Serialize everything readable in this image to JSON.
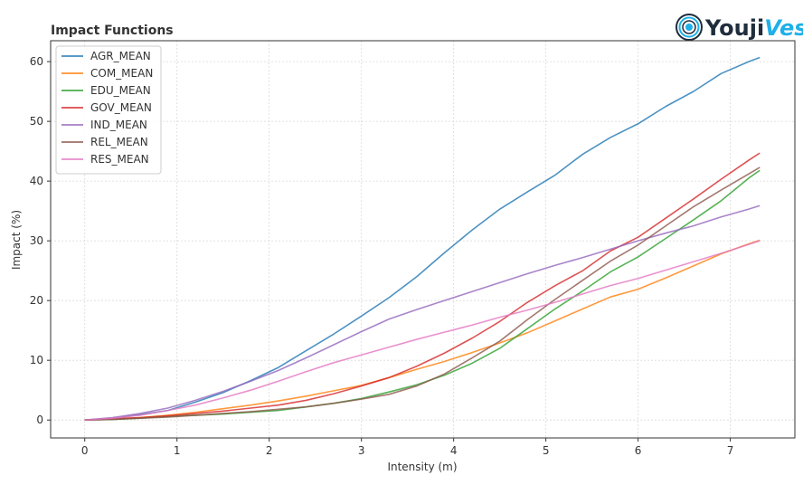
{
  "logo": {
    "part1": "Youji",
    "part2": "Vest"
  },
  "chart_data": {
    "type": "line",
    "title": "Impact Functions",
    "xlabel": "Intensity (m)",
    "ylabel": "Impact (%)",
    "xlim": [
      -0.37,
      7.7
    ],
    "ylim": [
      -3,
      63.5
    ],
    "xticks": [
      0,
      1,
      2,
      3,
      4,
      5,
      6,
      7
    ],
    "yticks": [
      0,
      10,
      20,
      30,
      40,
      50,
      60
    ],
    "grid": true,
    "legend_position": "top-left",
    "x": [
      0,
      0.3,
      0.6,
      0.9,
      1.2,
      1.5,
      1.8,
      2.1,
      2.4,
      2.7,
      3.0,
      3.3,
      3.6,
      3.9,
      4.2,
      4.5,
      4.8,
      5.1,
      5.4,
      5.7,
      6.0,
      6.3,
      6.6,
      6.9,
      7.2,
      7.32
    ],
    "series": [
      {
        "name": "AGR_MEAN",
        "color": "#1f77b4",
        "values": [
          0,
          0.3,
          0.9,
          1.6,
          3.0,
          4.6,
          6.6,
          8.8,
          11.6,
          14.4,
          17.4,
          20.5,
          24.0,
          28.0,
          31.8,
          35.3,
          38.2,
          41.0,
          44.5,
          47.3,
          49.6,
          52.5,
          55.0,
          58.0,
          60.0,
          60.7
        ]
      },
      {
        "name": "COM_MEAN",
        "color": "#ff7f0e",
        "values": [
          0,
          0.2,
          0.4,
          0.8,
          1.3,
          1.9,
          2.5,
          3.2,
          4.0,
          4.9,
          5.8,
          7.1,
          8.5,
          9.8,
          11.3,
          12.9,
          14.6,
          16.6,
          18.6,
          20.6,
          21.9,
          23.8,
          25.8,
          27.8,
          29.5,
          30.1
        ]
      },
      {
        "name": "EDU_MEAN",
        "color": "#2ca02c",
        "values": [
          0,
          0.1,
          0.3,
          0.6,
          0.8,
          1.0,
          1.3,
          1.6,
          2.2,
          2.8,
          3.6,
          4.7,
          5.9,
          7.5,
          9.5,
          12.0,
          15.3,
          18.6,
          21.6,
          24.8,
          27.3,
          30.4,
          33.5,
          36.7,
          40.5,
          41.8
        ]
      },
      {
        "name": "GOV_MEAN",
        "color": "#d62728",
        "values": [
          0,
          0.2,
          0.4,
          0.7,
          1.1,
          1.5,
          2.0,
          2.5,
          3.3,
          4.4,
          5.7,
          7.1,
          9.0,
          11.2,
          13.7,
          16.5,
          19.7,
          22.5,
          25.0,
          28.3,
          30.6,
          33.8,
          37.0,
          40.3,
          43.5,
          44.7
        ]
      },
      {
        "name": "IND_MEAN",
        "color": "#9467bd",
        "values": [
          0,
          0.4,
          1.1,
          2.0,
          3.3,
          4.8,
          6.5,
          8.3,
          10.4,
          12.6,
          14.8,
          16.9,
          18.5,
          20.0,
          21.5,
          23.0,
          24.5,
          25.9,
          27.2,
          28.6,
          30.0,
          31.3,
          32.5,
          34.0,
          35.3,
          35.9
        ]
      },
      {
        "name": "REL_MEAN",
        "color": "#8c564b",
        "values": [
          0,
          0.1,
          0.3,
          0.5,
          0.8,
          1.1,
          1.4,
          1.8,
          2.2,
          2.8,
          3.5,
          4.3,
          5.7,
          7.7,
          10.4,
          13.2,
          16.8,
          20.2,
          23.4,
          26.6,
          29.3,
          32.5,
          35.7,
          38.5,
          41.2,
          42.3
        ]
      },
      {
        "name": "RES_MEAN",
        "color": "#e377c2",
        "values": [
          0,
          0.3,
          0.8,
          1.6,
          2.5,
          3.7,
          5.0,
          6.5,
          8.1,
          9.6,
          10.9,
          12.2,
          13.5,
          14.7,
          15.9,
          17.2,
          18.4,
          19.7,
          21.1,
          22.5,
          23.7,
          25.1,
          26.5,
          27.9,
          29.4,
          30.0
        ]
      }
    ]
  }
}
